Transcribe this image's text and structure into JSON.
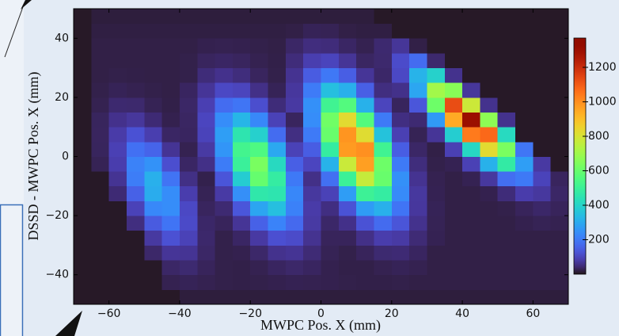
{
  "chart_data": {
    "type": "heatmap",
    "xlabel": "MWPC Pos. X (mm)",
    "ylabel": "DSSD - MWPC Pos. X (mm)",
    "xbins": [
      -70,
      -65,
      -60,
      -55,
      -50,
      -45,
      -40,
      -35,
      -30,
      -25,
      -20,
      -15,
      -10,
      -5,
      0,
      5,
      10,
      15,
      20,
      25,
      30,
      35,
      40,
      45,
      50,
      55,
      60,
      65,
      70
    ],
    "ybins": [
      -50,
      -45,
      -40,
      -35,
      -30,
      -25,
      -20,
      -15,
      -10,
      -5,
      0,
      5,
      10,
      15,
      20,
      25,
      30,
      35,
      40,
      45,
      50
    ],
    "z": [
      [
        5,
        5,
        5,
        5,
        5,
        5,
        15,
        15,
        15,
        15,
        15,
        15,
        15,
        15,
        15,
        15,
        15,
        15,
        15,
        15,
        15,
        15,
        15,
        15,
        15,
        15,
        15,
        15
      ],
      [
        5,
        5,
        5,
        5,
        5,
        25,
        28,
        25,
        22,
        21,
        22,
        24,
        26,
        25,
        24,
        22,
        21,
        21,
        22,
        20,
        20,
        20,
        20,
        20,
        20,
        20,
        20,
        20
      ],
      [
        5,
        5,
        5,
        5,
        5,
        36,
        42,
        30,
        22,
        21,
        25,
        33,
        38,
        33,
        24,
        21,
        21,
        25,
        28,
        25,
        20,
        20,
        20,
        20,
        20,
        20,
        20,
        20
      ],
      [
        5,
        5,
        5,
        5,
        38,
        67,
        65,
        36,
        22,
        24,
        38,
        60,
        65,
        45,
        27,
        22,
        30,
        42,
        44,
        33,
        20,
        20,
        20,
        20,
        20,
        20,
        20,
        20
      ],
      [
        5,
        5,
        5,
        5,
        74,
        123,
        93,
        39,
        22,
        35,
        75,
        120,
        111,
        62,
        30,
        30,
        56,
        83,
        77,
        45,
        26,
        20,
        20,
        20,
        20,
        20,
        20,
        20
      ],
      [
        5,
        5,
        5,
        51,
        142,
        192,
        110,
        37,
        30,
        66,
        155,
        221,
        169,
        76,
        37,
        57,
        126,
        173,
        130,
        60,
        27,
        20,
        20,
        20,
        20,
        24,
        27,
        25
      ],
      [
        5,
        5,
        5,
        94,
        231,
        241,
        106,
        32,
        43,
        133,
        290,
        347,
        216,
        80,
        52,
        126,
        271,
        313,
        192,
        71,
        28,
        20,
        20,
        20,
        22,
        30,
        37,
        30
      ],
      [
        5,
        5,
        44,
        155,
        305,
        241,
        84,
        27,
        77,
        244,
        463,
        453,
        229,
        72,
        93,
        273,
        506,
        480,
        237,
        72,
        26,
        20,
        20,
        24,
        47,
        82,
        72,
        36
      ],
      [
        5,
        5,
        64,
        208,
        314,
        191,
        55,
        23,
        131,
        381,
        597,
        481,
        201,
        56,
        183,
        504,
        768,
        602,
        247,
        63,
        25,
        20,
        26,
        72,
        180,
        201,
        96,
        32
      ],
      [
        5,
        27,
        84,
        219,
        251,
        118,
        35,
        56,
        206,
        497,
        634,
        417,
        150,
        100,
        318,
        775,
        966,
        613,
        202,
        49,
        22,
        26,
        91,
        316,
        475,
        275,
        75,
        5
      ],
      [
        5,
        31,
        90,
        184,
        161,
        65,
        25,
        76,
        257,
        522,
        550,
        296,
        93,
        146,
        482,
        975,
        997,
        514,
        146,
        36,
        20,
        89,
        411,
        827,
        636,
        195,
        5,
        5
      ],
      [
        5,
        32,
        80,
        124,
        86,
        35,
        33,
        96,
        274,
        453,
        390,
        176,
        53,
        202,
        602,
        987,
        820,
        356,
        89,
        27,
        67,
        383,
        1038,
        1073,
        418,
        5,
        5,
        5
      ],
      [
        5,
        31,
        59,
        70,
        44,
        24,
        34,
        100,
        240,
        326,
        231,
        93,
        32,
        240,
        618,
        828,
        561,
        202,
        52,
        43,
        267,
        943,
        1300,
        670,
        60,
        5,
        5,
        5
      ],
      [
        5,
        25,
        41,
        40,
        27,
        21,
        36,
        88,
        175,
        193,
        117,
        47,
        75,
        247,
        513,
        559,
        315,
        99,
        31,
        132,
        613,
        1127,
        780,
        60,
        5,
        5,
        5,
        5
      ],
      [
        5,
        22,
        28,
        25,
        22,
        20,
        33,
        67,
        106,
        99,
        56,
        28,
        71,
        204,
        347,
        313,
        150,
        51,
        58,
        291,
        706,
        661,
        70,
        5,
        5,
        5,
        5,
        5
      ],
      [
        5,
        20,
        22,
        21,
        20,
        20,
        22,
        47,
        59,
        49,
        32,
        22,
        63,
        144,
        199,
        149,
        67,
        37,
        106,
        320,
        394,
        60,
        5,
        5,
        5,
        5,
        5,
        5
      ],
      [
        5,
        20,
        20,
        20,
        20,
        20,
        22,
        32,
        35,
        32,
        25,
        21,
        48,
        86,
        98,
        66,
        34,
        40,
        112,
        176,
        40,
        5,
        5,
        5,
        5,
        5,
        5,
        5
      ],
      [
        5,
        20,
        20,
        20,
        20,
        20,
        20,
        24,
        25,
        24,
        22,
        20,
        36,
        50,
        48,
        35,
        25,
        41,
        68,
        20,
        5,
        5,
        5,
        5,
        5,
        5,
        5,
        5
      ],
      [
        5,
        18,
        18,
        18,
        18,
        18,
        18,
        18,
        18,
        18,
        18,
        18,
        20,
        28,
        27,
        20,
        18,
        18,
        5,
        5,
        5,
        5,
        5,
        5,
        5,
        5,
        5,
        5
      ],
      [
        5,
        15,
        15,
        15,
        15,
        15,
        15,
        15,
        15,
        15,
        15,
        15,
        15,
        15,
        15,
        15,
        15,
        5,
        5,
        5,
        5,
        5,
        5,
        5,
        5,
        5,
        5,
        5
      ]
    ],
    "xlim": [
      -70,
      70
    ],
    "ylim": [
      -50,
      50
    ],
    "xticks": [
      {
        "value": -60,
        "label": "−60"
      },
      {
        "value": -40,
        "label": "−40"
      },
      {
        "value": -20,
        "label": "−20"
      },
      0,
      20,
      40,
      60
    ],
    "yticks": [
      {
        "value": -40,
        "label": "−40"
      },
      {
        "value": -20,
        "label": "−20"
      },
      0,
      20,
      40
    ],
    "colormap": "turbo",
    "clim": [
      0,
      1370
    ],
    "cticks": [
      200,
      400,
      600,
      800,
      1000,
      1200
    ]
  }
}
